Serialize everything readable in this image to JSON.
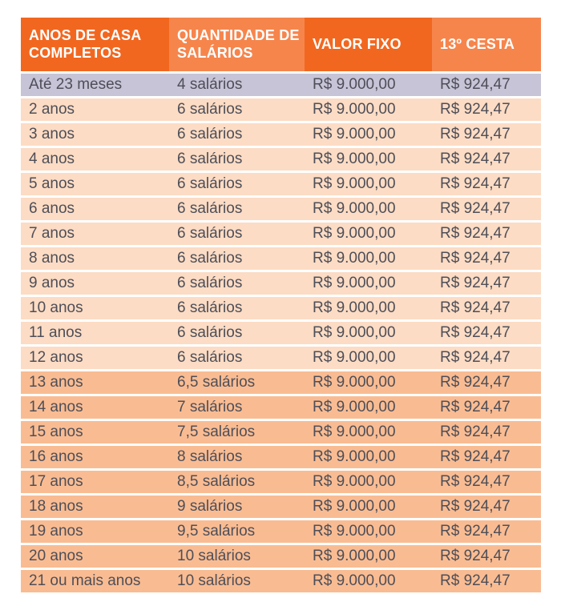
{
  "colors": {
    "header_dark_orange": "#F2671F",
    "header_light_orange": "#F6854C",
    "header_text": "#FFFFFF",
    "row_lavender": "#C7C4D7",
    "row_peach_light": "#FCDCC4",
    "row_peach_dark": "#F9BC92",
    "text_dark": "#4E4E58",
    "page_background": "#FFFFFF"
  },
  "table": {
    "columns": [
      {
        "label": "ANOS DE CASA COMPLETOS"
      },
      {
        "label": "QUANTIDADE DE SALÁRIOS"
      },
      {
        "label": "VALOR FIXO"
      },
      {
        "label": "13º CESTA"
      }
    ],
    "rows": [
      {
        "anos": "Até 23 meses",
        "salarios": "4 salários",
        "valor_fixo": "R$ 9.000,00",
        "cesta": "R$ 924,47",
        "highlight": "lavender"
      },
      {
        "anos": "2 anos",
        "salarios": "6 salários",
        "valor_fixo": "R$ 9.000,00",
        "cesta": "R$ 924,47",
        "highlight": "peach_light"
      },
      {
        "anos": "3 anos",
        "salarios": "6 salários",
        "valor_fixo": "R$ 9.000,00",
        "cesta": "R$ 924,47",
        "highlight": "peach_light"
      },
      {
        "anos": "4 anos",
        "salarios": "6 salários",
        "valor_fixo": "R$ 9.000,00",
        "cesta": "R$ 924,47",
        "highlight": "peach_light"
      },
      {
        "anos": "5 anos",
        "salarios": "6 salários",
        "valor_fixo": "R$ 9.000,00",
        "cesta": "R$ 924,47",
        "highlight": "peach_light"
      },
      {
        "anos": "6 anos",
        "salarios": "6 salários",
        "valor_fixo": "R$ 9.000,00",
        "cesta": "R$ 924,47",
        "highlight": "peach_light"
      },
      {
        "anos": "7 anos",
        "salarios": "6 salários",
        "valor_fixo": "R$ 9.000,00",
        "cesta": "R$ 924,47",
        "highlight": "peach_light"
      },
      {
        "anos": "8 anos",
        "salarios": "6 salários",
        "valor_fixo": "R$ 9.000,00",
        "cesta": "R$ 924,47",
        "highlight": "peach_light"
      },
      {
        "anos": "9 anos",
        "salarios": "6 salários",
        "valor_fixo": "R$ 9.000,00",
        "cesta": "R$ 924,47",
        "highlight": "peach_light"
      },
      {
        "anos": "10 anos",
        "salarios": "6 salários",
        "valor_fixo": "R$ 9.000,00",
        "cesta": "R$ 924,47",
        "highlight": "peach_light"
      },
      {
        "anos": "11 anos",
        "salarios": "6 salários",
        "valor_fixo": "R$ 9.000,00",
        "cesta": "R$ 924,47",
        "highlight": "peach_light"
      },
      {
        "anos": "12 anos",
        "salarios": "6 salários",
        "valor_fixo": "R$ 9.000,00",
        "cesta": "R$ 924,47",
        "highlight": "peach_light"
      },
      {
        "anos": "13 anos",
        "salarios": "6,5 salários",
        "valor_fixo": "R$ 9.000,00",
        "cesta": "R$ 924,47",
        "highlight": "peach_dark"
      },
      {
        "anos": "14 anos",
        "salarios": "7 salários",
        "valor_fixo": "R$ 9.000,00",
        "cesta": "R$ 924,47",
        "highlight": "peach_dark"
      },
      {
        "anos": "15 anos",
        "salarios": "7,5 salários",
        "valor_fixo": "R$ 9.000,00",
        "cesta": "R$ 924,47",
        "highlight": "peach_dark"
      },
      {
        "anos": "16 anos",
        "salarios": "8 salários",
        "valor_fixo": "R$ 9.000,00",
        "cesta": "R$ 924,47",
        "highlight": "peach_dark"
      },
      {
        "anos": "17 anos",
        "salarios": "8,5 salários",
        "valor_fixo": "R$ 9.000,00",
        "cesta": "R$ 924,47",
        "highlight": "peach_dark"
      },
      {
        "anos": "18 anos",
        "salarios": "9 salários",
        "valor_fixo": "R$ 9.000,00",
        "cesta": "R$ 924,47",
        "highlight": "peach_dark"
      },
      {
        "anos": "19 anos",
        "salarios": "9,5 salários",
        "valor_fixo": "R$ 9.000,00",
        "cesta": "R$ 924,47",
        "highlight": "peach_dark"
      },
      {
        "anos": "20 anos",
        "salarios": "10 salários",
        "valor_fixo": "R$ 9.000,00",
        "cesta": "R$ 924,47",
        "highlight": "peach_dark"
      },
      {
        "anos": "21 ou mais anos",
        "salarios": "10 salários",
        "valor_fixo": "R$ 9.000,00",
        "cesta": "R$ 924,47",
        "highlight": "peach_dark"
      }
    ]
  }
}
